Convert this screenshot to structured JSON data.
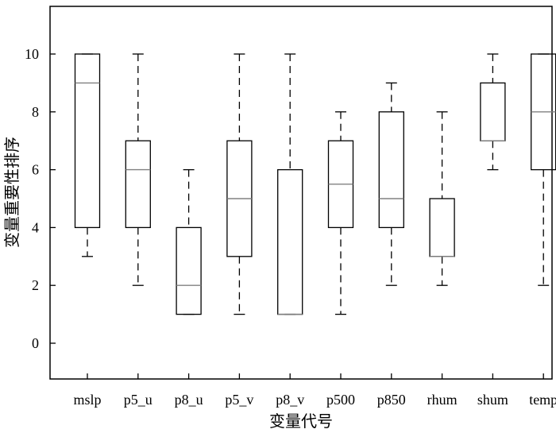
{
  "chart_data": {
    "type": "box",
    "title": "",
    "xlabel": "变量代号",
    "ylabel": "变量重要性排序",
    "ylim": [
      -1.2,
      11.6
    ],
    "yticks": [
      0,
      2,
      4,
      6,
      8,
      10
    ],
    "grid": false,
    "categories": [
      "mslp",
      "p5_u",
      "p8_u",
      "p5_v",
      "p8_v",
      "p500",
      "p850",
      "rhum",
      "shum",
      "temp"
    ],
    "boxes": [
      {
        "name": "mslp",
        "whisker_low": 3,
        "q1": 4,
        "median": 9,
        "q3": 10,
        "whisker_high": 10
      },
      {
        "name": "p5_u",
        "whisker_low": 2,
        "q1": 4,
        "median": 6,
        "q3": 7,
        "whisker_high": 10
      },
      {
        "name": "p8_u",
        "whisker_low": 1,
        "q1": 1,
        "median": 2,
        "q3": 4,
        "whisker_high": 6
      },
      {
        "name": "p5_v",
        "whisker_low": 1,
        "q1": 3,
        "median": 5,
        "q3": 7,
        "whisker_high": 10
      },
      {
        "name": "p8_v",
        "whisker_low": 1,
        "q1": 1,
        "median": 1,
        "q3": 6,
        "whisker_high": 10
      },
      {
        "name": "p500",
        "whisker_low": 1,
        "q1": 4,
        "median": 5.5,
        "q3": 7,
        "whisker_high": 8
      },
      {
        "name": "p850",
        "whisker_low": 2,
        "q1": 4,
        "median": 5,
        "q3": 8,
        "whisker_high": 9
      },
      {
        "name": "rhum",
        "whisker_low": 2,
        "q1": 3,
        "median": 3,
        "q3": 5,
        "whisker_high": 8
      },
      {
        "name": "shum",
        "whisker_low": 6,
        "q1": 7,
        "median": 7,
        "q3": 9,
        "whisker_high": 10
      },
      {
        "name": "temp",
        "whisker_low": 2,
        "q1": 6,
        "median": 8,
        "q3": 10,
        "whisker_high": 10
      }
    ],
    "colors": {
      "box": "#000000",
      "median": "#808080",
      "whisker": "#000000"
    }
  }
}
